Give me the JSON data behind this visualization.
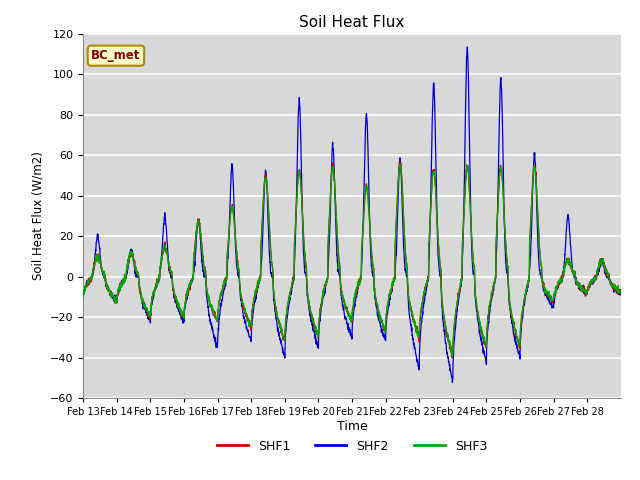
{
  "title": "Soil Heat Flux",
  "ylabel": "Soil Heat Flux (W/m2)",
  "xlabel": "Time",
  "ylim": [
    -60,
    120
  ],
  "yticks": [
    -60,
    -40,
    -20,
    0,
    20,
    40,
    60,
    80,
    100,
    120
  ],
  "plot_bg_color": "#d8d8d8",
  "fig_bg_color": "#ffffff",
  "grid_color": "#ffffff",
  "series": [
    "SHF1",
    "SHF2",
    "SHF3"
  ],
  "colors": [
    "#cc0000",
    "#0000cc",
    "#00aa00"
  ],
  "annotation_text": "BC_met",
  "annotation_bg": "#ffffcc",
  "annotation_border": "#aa8800",
  "x_tick_labels": [
    "Feb 13",
    "Feb 14",
    "Feb 15",
    "Feb 16",
    "Feb 17",
    "Feb 18",
    "Feb 19",
    "Feb 20",
    "Feb 21",
    "Feb 22",
    "Feb 23",
    "Feb 24",
    "Feb 25",
    "Feb 26",
    "Feb 27",
    "Feb 28"
  ],
  "n_days": 16,
  "points_per_day": 144
}
